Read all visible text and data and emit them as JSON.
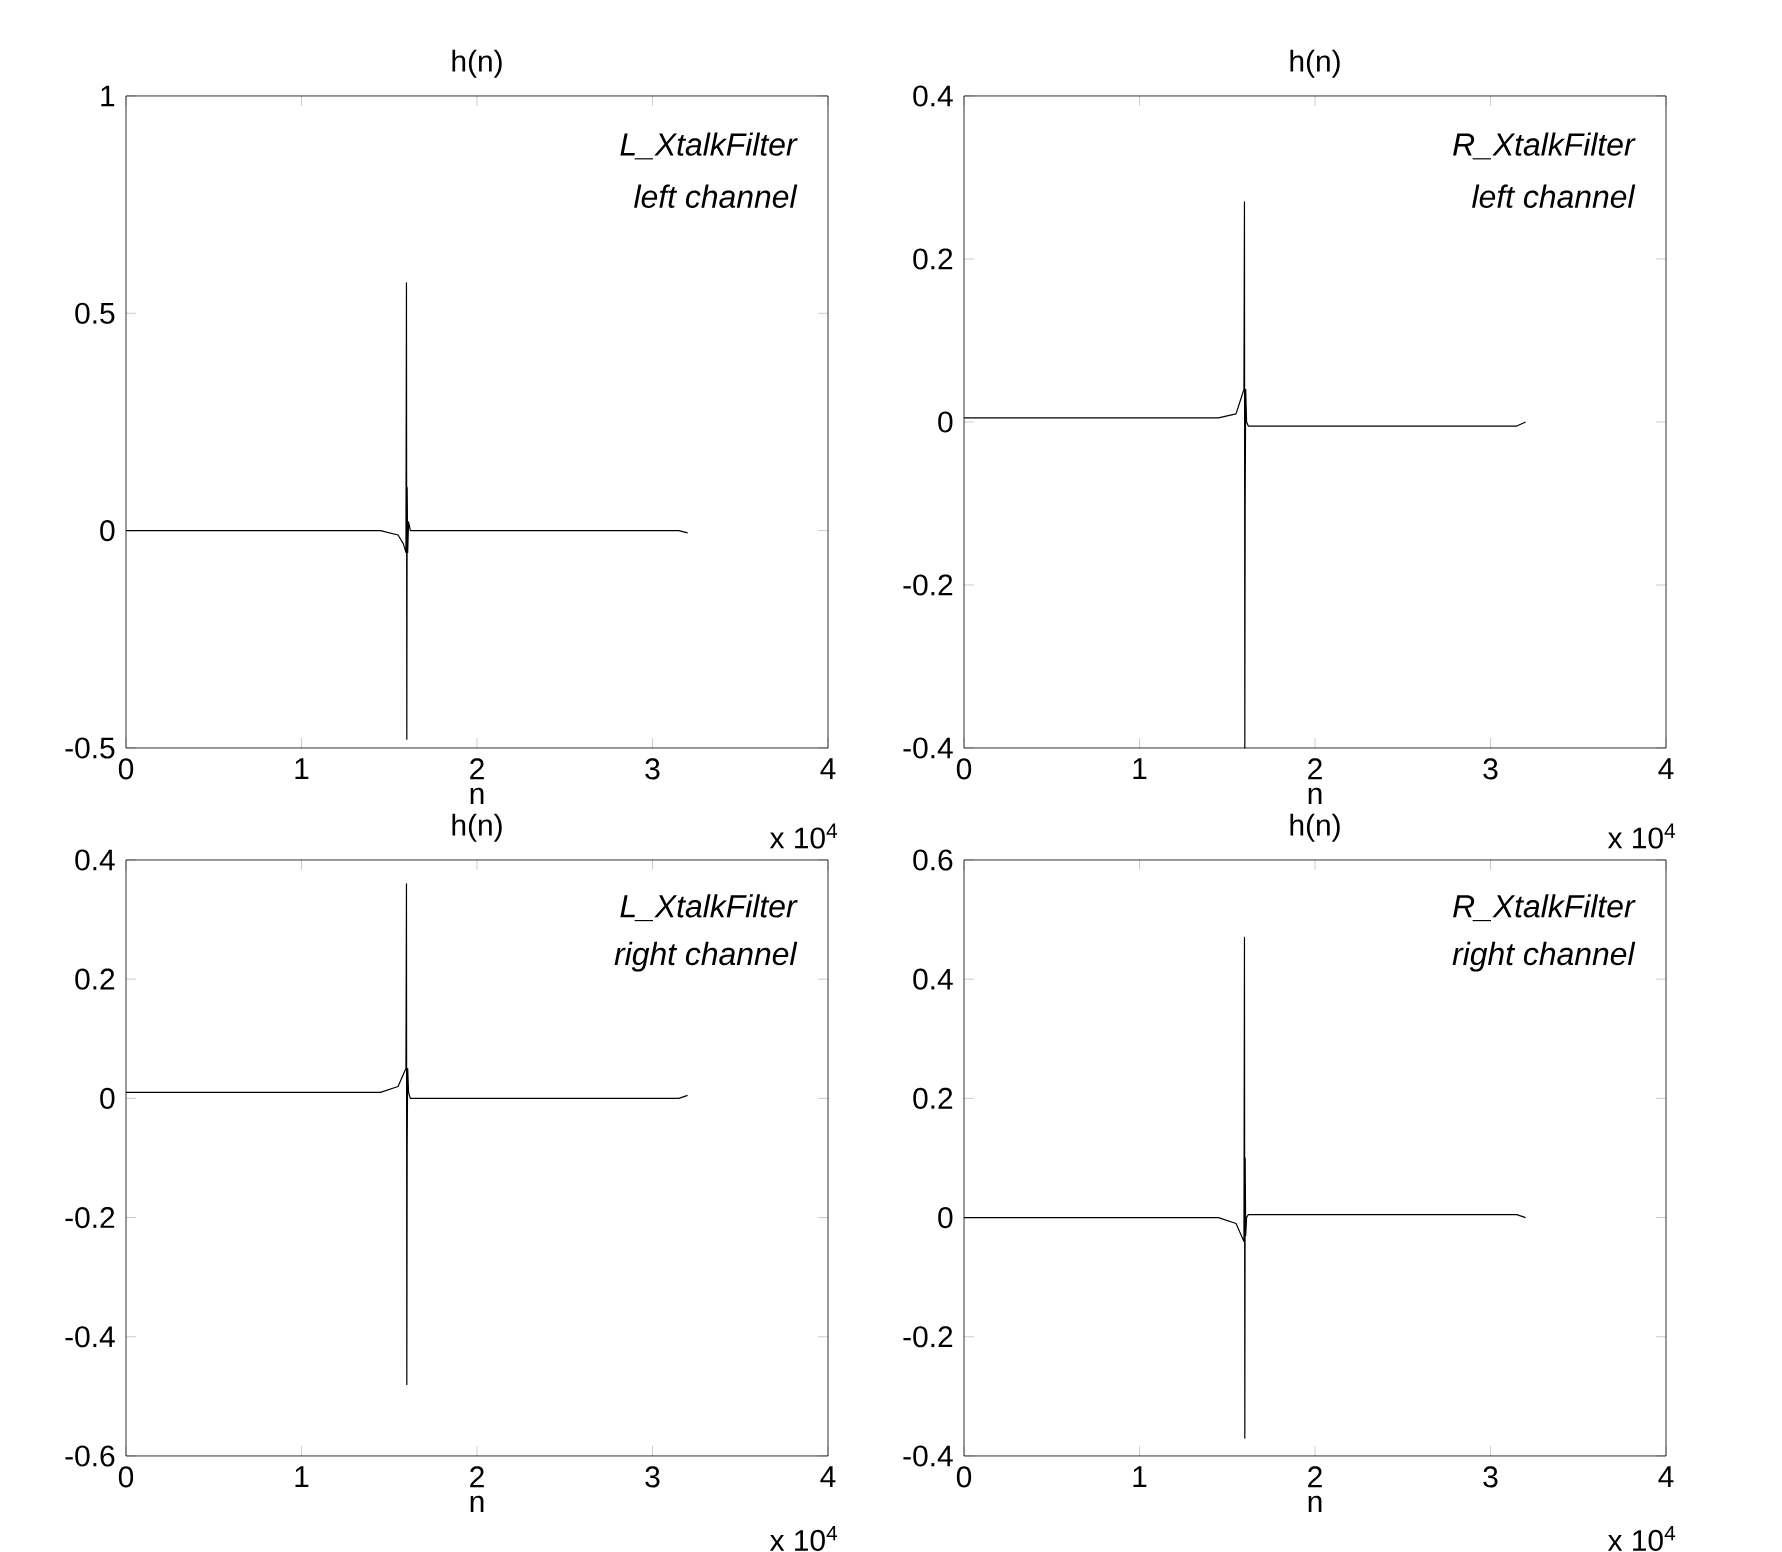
{
  "chart_data": [
    {
      "type": "line",
      "title": "h(n)",
      "xlabel": "n",
      "color": "#000000",
      "annotations": [
        "L_XtalkFilter",
        "left channel",
        "x 10$^{4}$"
      ],
      "x": [
        0,
        0.5,
        1,
        1.45,
        1.55,
        1.58,
        1.595,
        1.598,
        1.6,
        1.602,
        1.605,
        1.61,
        1.62,
        2,
        2.5,
        3.1,
        3.15,
        3.2
      ],
      "values": [
        0,
        0,
        0,
        0,
        -0.01,
        -0.03,
        -0.05,
        0.57,
        -0.48,
        0.1,
        -0.05,
        0.02,
        0,
        0,
        0,
        0,
        0,
        -0.005
      ],
      "xlim": [
        0,
        4
      ],
      "ylim": [
        -0.5,
        1
      ],
      "xticks": [
        0,
        1,
        2,
        3,
        4
      ],
      "yticks": [
        -0.5,
        0,
        0.5,
        1
      ]
    },
    {
      "type": "line",
      "title": "h(n)",
      "xlabel": "n",
      "color": "#000000",
      "annotations": [
        "R_XtalkFilter",
        "left channel",
        "x 10$^{4}$"
      ],
      "x": [
        0,
        0.5,
        1,
        1.45,
        1.55,
        1.58,
        1.595,
        1.598,
        1.6,
        1.602,
        1.605,
        1.61,
        1.62,
        2,
        2.5,
        3.1,
        3.15,
        3.2
      ],
      "values": [
        0.005,
        0.005,
        0.005,
        0.005,
        0.01,
        0.03,
        0.04,
        0.27,
        -0.4,
        -0.1,
        0.04,
        0,
        -0.005,
        -0.005,
        -0.005,
        -0.005,
        -0.005,
        0
      ],
      "xlim": [
        0,
        4
      ],
      "ylim": [
        -0.4,
        0.4
      ],
      "xticks": [
        0,
        1,
        2,
        3,
        4
      ],
      "yticks": [
        -0.4,
        -0.2,
        0,
        0.2,
        0.4
      ]
    },
    {
      "type": "line",
      "title": "h(n)",
      "xlabel": "n",
      "color": "#000000",
      "annotations": [
        "L_XtalkFilter",
        "right channel",
        "x 10$^{4}$"
      ],
      "x": [
        0,
        0.5,
        1,
        1.45,
        1.55,
        1.58,
        1.595,
        1.598,
        1.6,
        1.602,
        1.605,
        1.61,
        1.62,
        2,
        2.5,
        3.1,
        3.15,
        3.2
      ],
      "values": [
        0.01,
        0.01,
        0.01,
        0.01,
        0.02,
        0.04,
        0.05,
        0.36,
        -0.48,
        -0.08,
        0.05,
        0.01,
        0,
        0,
        0,
        0,
        0,
        0.005
      ],
      "xlim": [
        0,
        4
      ],
      "ylim": [
        -0.6,
        0.4
      ],
      "xticks": [
        0,
        1,
        2,
        3,
        4
      ],
      "yticks": [
        -0.6,
        -0.4,
        -0.2,
        0,
        0.2,
        0.4
      ]
    },
    {
      "type": "line",
      "title": "h(n)",
      "xlabel": "n",
      "color": "#000000",
      "annotations": [
        "R_XtalkFilter",
        "right channel",
        "x 10$^{4}$"
      ],
      "x": [
        0,
        0.5,
        1,
        1.45,
        1.55,
        1.58,
        1.595,
        1.598,
        1.6,
        1.602,
        1.605,
        1.61,
        1.62,
        2,
        2.5,
        3.1,
        3.15,
        3.2
      ],
      "values": [
        0,
        0,
        0,
        0,
        -0.01,
        -0.03,
        -0.04,
        0.47,
        -0.37,
        0.1,
        -0.03,
        0,
        0.005,
        0.005,
        0.005,
        0.005,
        0.005,
        0
      ],
      "xlim": [
        0,
        4
      ],
      "ylim": [
        -0.4,
        0.6
      ],
      "xticks": [
        0,
        1,
        2,
        3,
        4
      ],
      "yticks": [
        -0.4,
        -0.2,
        0,
        0.2,
        0.4,
        0.6
      ]
    }
  ]
}
